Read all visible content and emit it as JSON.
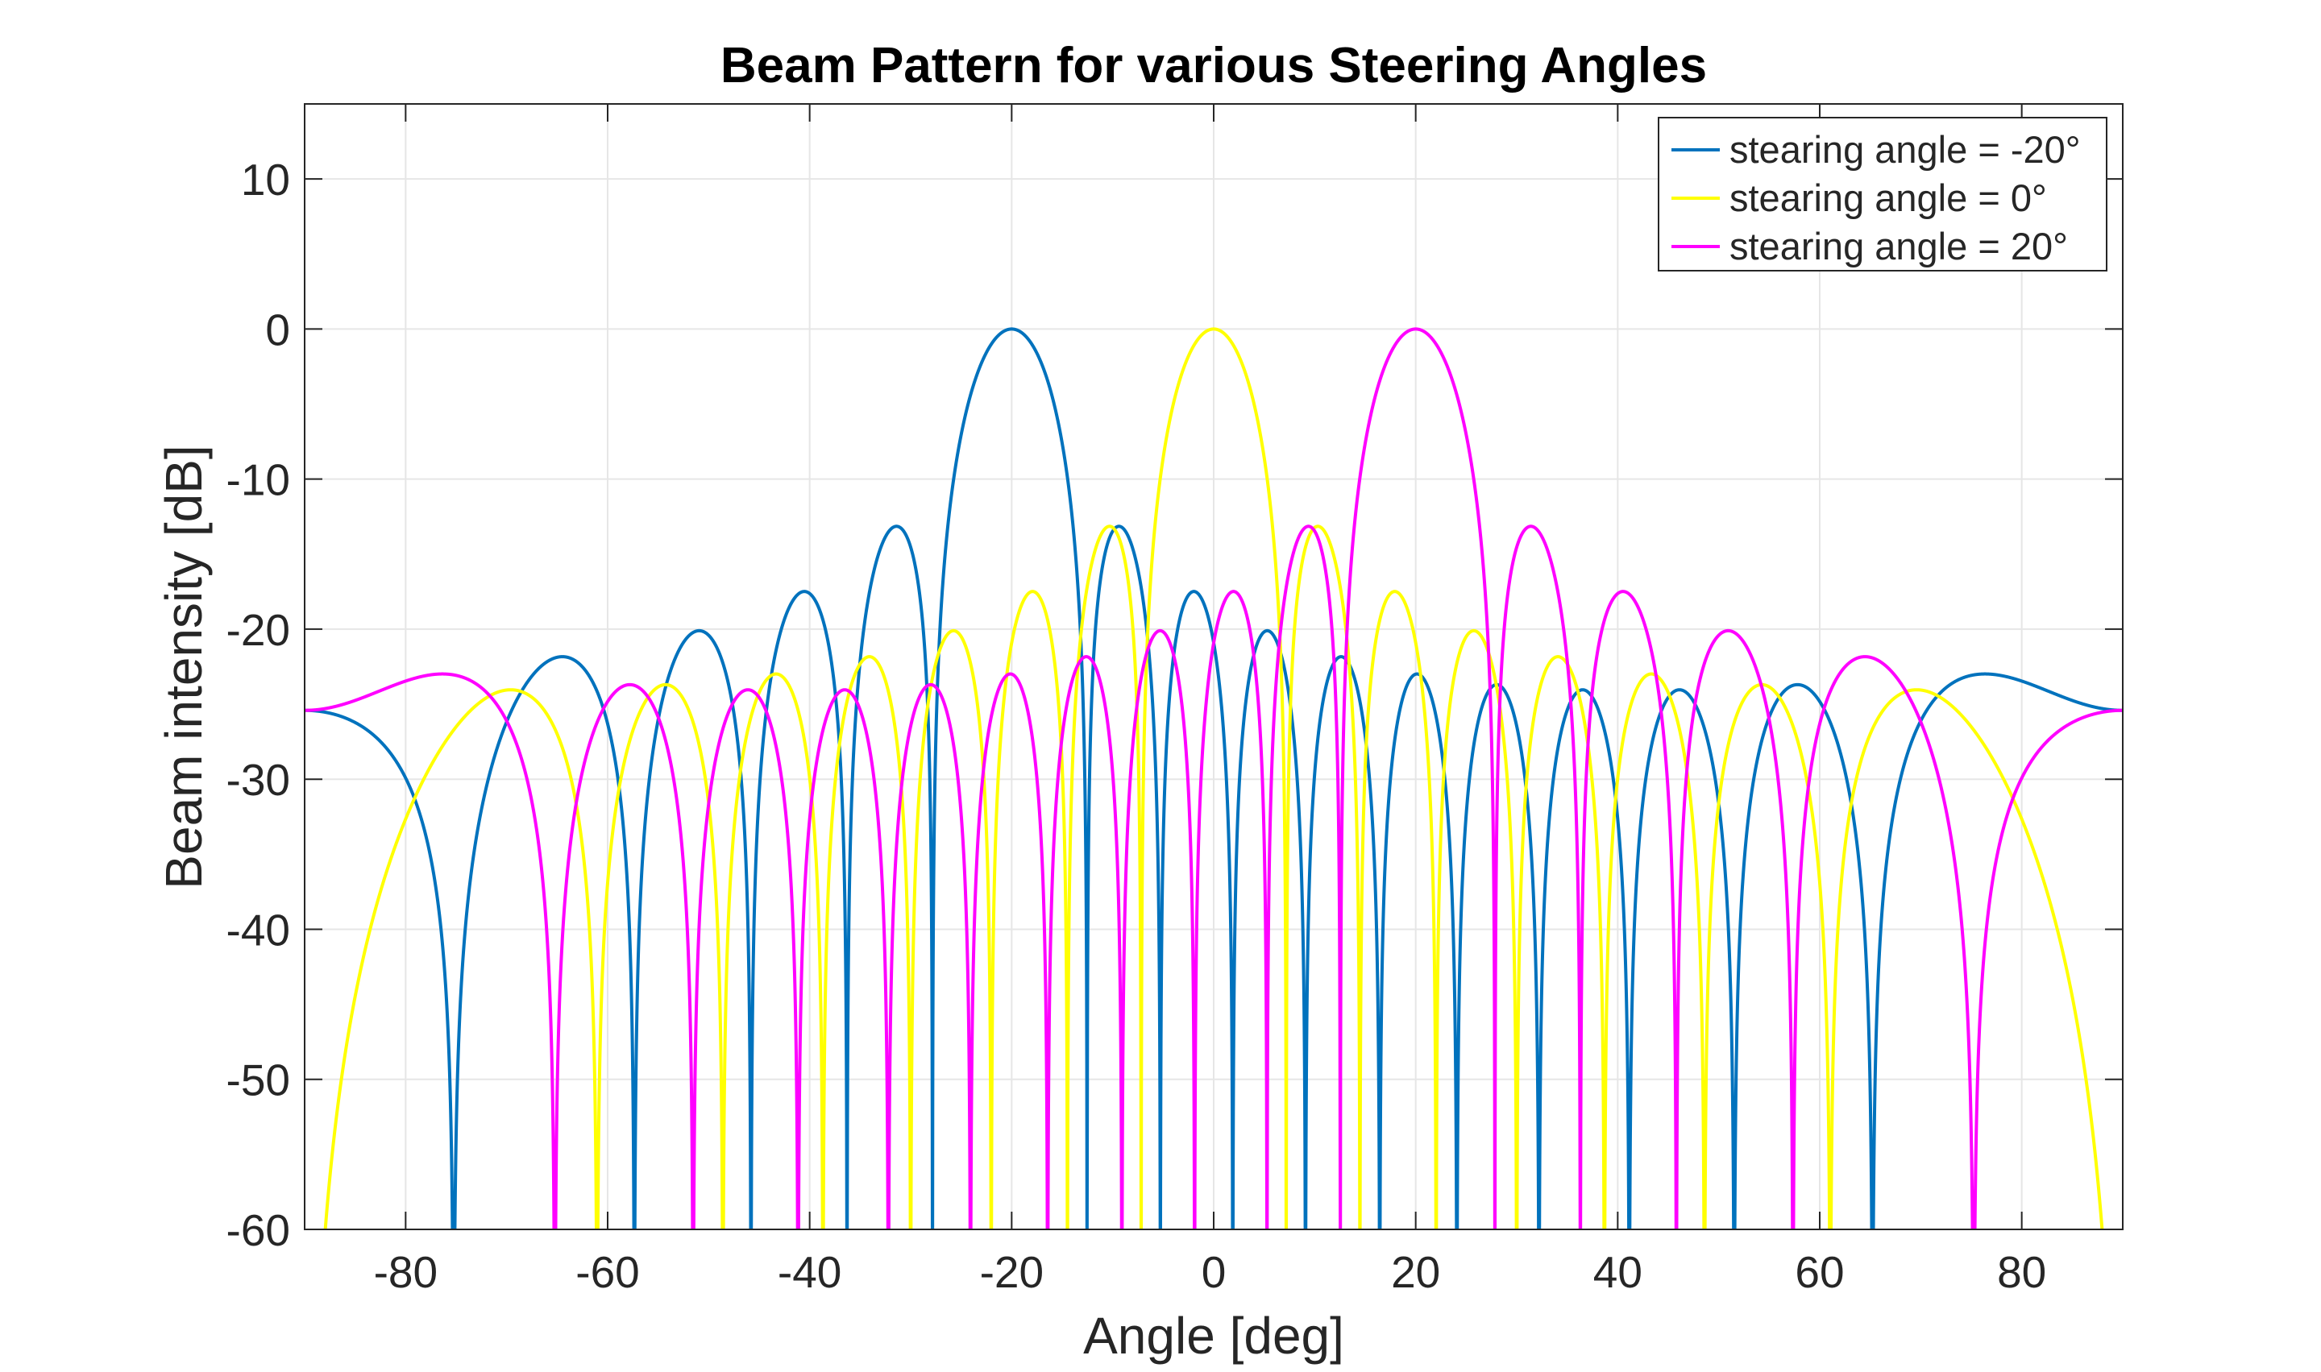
{
  "chart_data": {
    "type": "line",
    "title": "Beam Pattern for various Steering Angles",
    "xlabel": "Angle [deg]",
    "ylabel": "Beam intensity [dB]",
    "xlim": [
      -90,
      90
    ],
    "ylim": [
      -60,
      15
    ],
    "xticks": [
      -80,
      -60,
      -40,
      -20,
      0,
      20,
      40,
      60,
      80
    ],
    "yticks": [
      10,
      0,
      -10,
      -20,
      -30,
      -40,
      -50,
      -60
    ],
    "xtick_labels": [
      "-80",
      "-60",
      "-40",
      "-20",
      "0",
      "20",
      "40",
      "60",
      "80"
    ],
    "ytick_labels": [
      "10",
      "0",
      "-10",
      "-20",
      "-30",
      "-40",
      "-50",
      "-60"
    ],
    "grid": true,
    "box": true,
    "legend_position": "top-right",
    "array_elements": 16,
    "element_spacing_wavelengths": 0.5,
    "series": [
      {
        "name": "stearing angle = -20°",
        "steering_deg": -20,
        "color": "#0072BD"
      },
      {
        "name": "stearing angle = 0°",
        "steering_deg": 0,
        "color": "#FFFF00"
      },
      {
        "name": "stearing angle = 20°",
        "steering_deg": 20,
        "color": "#FF00FF"
      }
    ]
  }
}
